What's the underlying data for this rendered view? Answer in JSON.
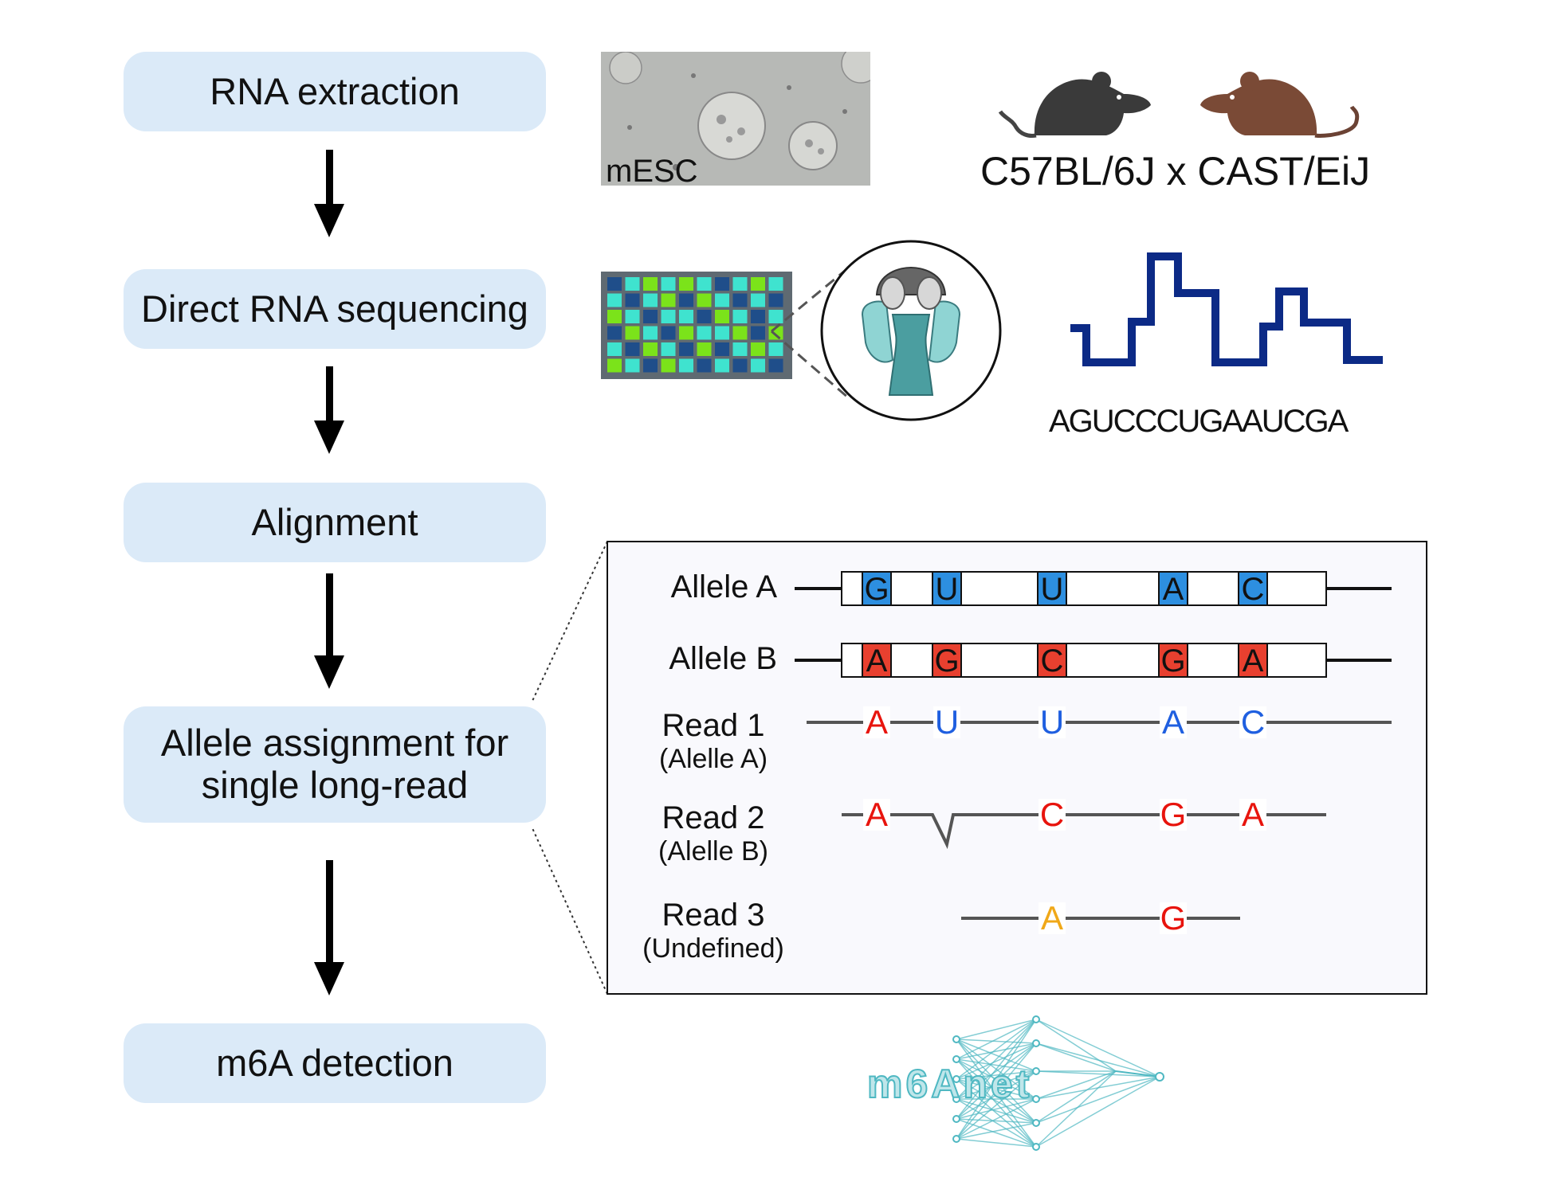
{
  "steps": {
    "rna_extraction": "RNA extraction",
    "direct_rna_sequencing": "Direct RNA sequencing",
    "alignment": "Alignment",
    "allele_assignment_line1": "Allele assignment for",
    "allele_assignment_line2": "single long-read",
    "m6a_detection": "m6A detection"
  },
  "cells": {
    "label": "mESC",
    "cross": "C57BL/6J x CAST/EiJ"
  },
  "sequencing": {
    "sequence": "AGUCCCUGAAUCGA"
  },
  "alignment_panel": {
    "allele_a": {
      "label": "Allele A",
      "bases": [
        "G",
        "U",
        "U",
        "A",
        "C"
      ]
    },
    "allele_b": {
      "label": "Allele B",
      "bases": [
        "A",
        "G",
        "C",
        "G",
        "A"
      ]
    },
    "read1": {
      "label": "Read 1",
      "sublabel": "(Alelle A)",
      "bases": [
        "A",
        "U",
        "U",
        "A",
        "C"
      ]
    },
    "read2": {
      "label": "Read 2",
      "sublabel": "(Alelle B)",
      "bases": [
        "A",
        "C",
        "G",
        "A"
      ]
    },
    "read3": {
      "label": "Read 3",
      "sublabel": "(Undefined)",
      "bases": [
        "A",
        "G"
      ]
    }
  },
  "colors": {
    "step_box": "#dbeaf8",
    "allele_a_blue": "#2d8fe0",
    "allele_b_red": "#e8402f",
    "read_red": "#e8140d",
    "read_blue": "#1f5fe0",
    "undefined_orange": "#f0a818",
    "signal_navy": "#0c2a86",
    "logo_teal": "#4fb8c2"
  },
  "logo": "m6Anet"
}
